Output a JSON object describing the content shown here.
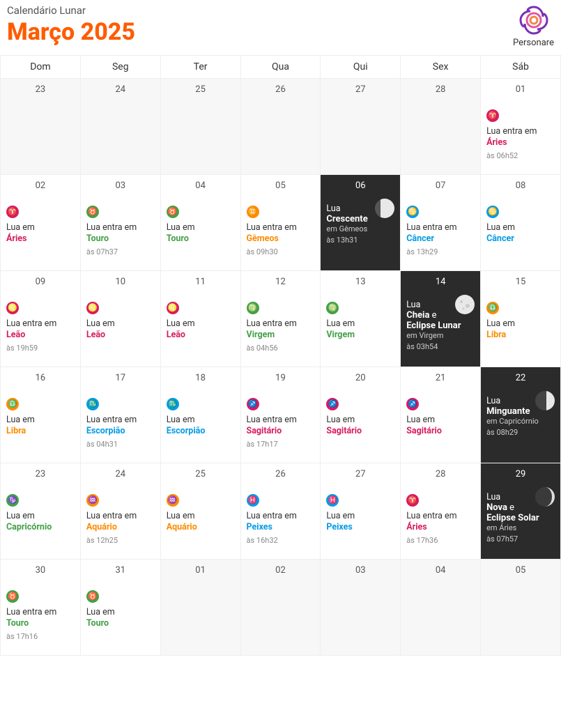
{
  "header": {
    "subtitle": "Calendário Lunar",
    "title": "Março 2025",
    "logo_text": "Personare"
  },
  "weekdays": [
    "Dom",
    "Seg",
    "Ter",
    "Qua",
    "Qui",
    "Sex",
    "Sáb"
  ],
  "signs": {
    "aries": {
      "color": "#d81b60",
      "glyph": "♈",
      "label_color": "#d81b60"
    },
    "touro": {
      "color": "#43a047",
      "glyph": "♉",
      "label_color": "#43a047"
    },
    "gemeos": {
      "color": "#fb8c00",
      "glyph": "♊",
      "label_color": "#fb8c00"
    },
    "cancer": {
      "color": "#039be5",
      "glyph": "♋",
      "label_color": "#039be5"
    },
    "leao": {
      "color": "#d81b60",
      "glyph": "♌",
      "label_color": "#d81b60"
    },
    "virgem": {
      "color": "#43a047",
      "glyph": "♍",
      "label_color": "#43a047"
    },
    "libra": {
      "color": "#fb8c00",
      "glyph": "♎",
      "label_color": "#fb8c00"
    },
    "escorpiao": {
      "color": "#039be5",
      "glyph": "♏",
      "label_color": "#039be5"
    },
    "sagitario": {
      "color": "#d81b60",
      "glyph": "♐",
      "label_color": "#d81b60"
    },
    "capricornio": {
      "color": "#43a047",
      "glyph": "♑",
      "label_color": "#43a047"
    },
    "aquario": {
      "color": "#fb8c00",
      "glyph": "♒",
      "label_color": "#fb8c00"
    },
    "peixes": {
      "color": "#039be5",
      "glyph": "♓",
      "label_color": "#039be5"
    }
  },
  "cells": [
    {
      "day": "23",
      "grey": true
    },
    {
      "day": "24",
      "grey": true
    },
    {
      "day": "25",
      "grey": true
    },
    {
      "day": "26",
      "grey": true
    },
    {
      "day": "27",
      "grey": true
    },
    {
      "day": "28",
      "grey": true
    },
    {
      "day": "01",
      "sign": "aries",
      "pre": "Lua entra em",
      "signLabel": "Áries",
      "time": "às 06h52"
    },
    {
      "day": "02",
      "sign": "aries",
      "pre": "Lua em",
      "signLabel": "Áries"
    },
    {
      "day": "03",
      "sign": "touro",
      "pre": "Lua entra em",
      "signLabel": "Touro",
      "time": "às 07h37"
    },
    {
      "day": "04",
      "sign": "touro",
      "pre": "Lua em",
      "signLabel": "Touro"
    },
    {
      "day": "05",
      "sign": "gemeos",
      "pre": "Lua entra em",
      "signLabel": "Gêmeos",
      "time": "às 09h30"
    },
    {
      "day": "06",
      "dark": true,
      "moon": "waxing",
      "phasePrefix": "Lua",
      "phaseName": "Crescente",
      "phaseSign": "em Gêmeos",
      "time": "às 13h31"
    },
    {
      "day": "07",
      "sign": "cancer",
      "pre": "Lua entra em",
      "signLabel": "Câncer",
      "time": "às 13h29"
    },
    {
      "day": "08",
      "sign": "cancer",
      "pre": "Lua em",
      "signLabel": "Câncer"
    },
    {
      "day": "09",
      "sign": "leao",
      "pre": "Lua entra em",
      "signLabel": "Leão",
      "time": "às 19h59"
    },
    {
      "day": "10",
      "sign": "leao",
      "pre": "Lua em",
      "signLabel": "Leão"
    },
    {
      "day": "11",
      "sign": "leao",
      "pre": "Lua em",
      "signLabel": "Leão"
    },
    {
      "day": "12",
      "sign": "virgem",
      "pre": "Lua entra em",
      "signLabel": "Virgem",
      "time": "às 04h56"
    },
    {
      "day": "13",
      "sign": "virgem",
      "pre": "Lua em",
      "signLabel": "Virgem"
    },
    {
      "day": "14",
      "dark": true,
      "moon": "full",
      "phasePrefix": "Lua",
      "phaseName": "Cheia",
      "phaseExtra": " e",
      "phaseName2": "Eclipse Lunar",
      "phaseSign": "em Virgem",
      "time": "às 03h54"
    },
    {
      "day": "15",
      "sign": "libra",
      "pre": "Lua em",
      "signLabel": "Libra"
    },
    {
      "day": "16",
      "sign": "libra",
      "pre": "Lua em",
      "signLabel": "Libra"
    },
    {
      "day": "17",
      "sign": "escorpiao",
      "pre": "Lua entra em",
      "signLabel": "Escorpião",
      "time": "às 04h31"
    },
    {
      "day": "18",
      "sign": "escorpiao",
      "pre": "Lua em",
      "signLabel": "Escorpião"
    },
    {
      "day": "19",
      "sign": "sagitario",
      "pre": "Lua entra em",
      "signLabel": "Sagitário",
      "time": "às 17h17"
    },
    {
      "day": "20",
      "sign": "sagitario",
      "pre": "Lua em",
      "signLabel": "Sagitário"
    },
    {
      "day": "21",
      "sign": "sagitario",
      "pre": "Lua em",
      "signLabel": "Sagitário"
    },
    {
      "day": "22",
      "dark": true,
      "moon": "waning",
      "phasePrefix": "Lua",
      "phaseName": "Minguante",
      "phaseSign": "em Capricórnio",
      "time": "às 08h29"
    },
    {
      "day": "23",
      "sign": "capricornio",
      "pre": "Lua em",
      "signLabel": "Capricórnio"
    },
    {
      "day": "24",
      "sign": "aquario",
      "pre": "Lua entra em",
      "signLabel": "Aquário",
      "time": "às 12h25"
    },
    {
      "day": "25",
      "sign": "aquario",
      "pre": "Lua em",
      "signLabel": "Aquário"
    },
    {
      "day": "26",
      "sign": "peixes",
      "pre": "Lua entra em",
      "signLabel": "Peixes",
      "time": "às 16h32"
    },
    {
      "day": "27",
      "sign": "peixes",
      "pre": "Lua em",
      "signLabel": "Peixes"
    },
    {
      "day": "28",
      "sign": "aries",
      "pre": "Lua entra em",
      "signLabel": "Áries",
      "time": "às 17h36"
    },
    {
      "day": "29",
      "dark": true,
      "moon": "new",
      "phasePrefix": "Lua",
      "phaseName": "Nova",
      "phaseExtra": " e",
      "phaseName2": "Eclipse Solar",
      "phaseSign": "em Áries",
      "time": "às 07h57"
    },
    {
      "day": "30",
      "sign": "touro",
      "pre": "Lua entra em",
      "signLabel": "Touro",
      "time": "às 17h16"
    },
    {
      "day": "31",
      "sign": "touro",
      "pre": "Lua em",
      "signLabel": "Touro"
    },
    {
      "day": "01",
      "grey": true
    },
    {
      "day": "02",
      "grey": true
    },
    {
      "day": "03",
      "grey": true
    },
    {
      "day": "04",
      "grey": true
    },
    {
      "day": "05",
      "grey": true
    }
  ]
}
